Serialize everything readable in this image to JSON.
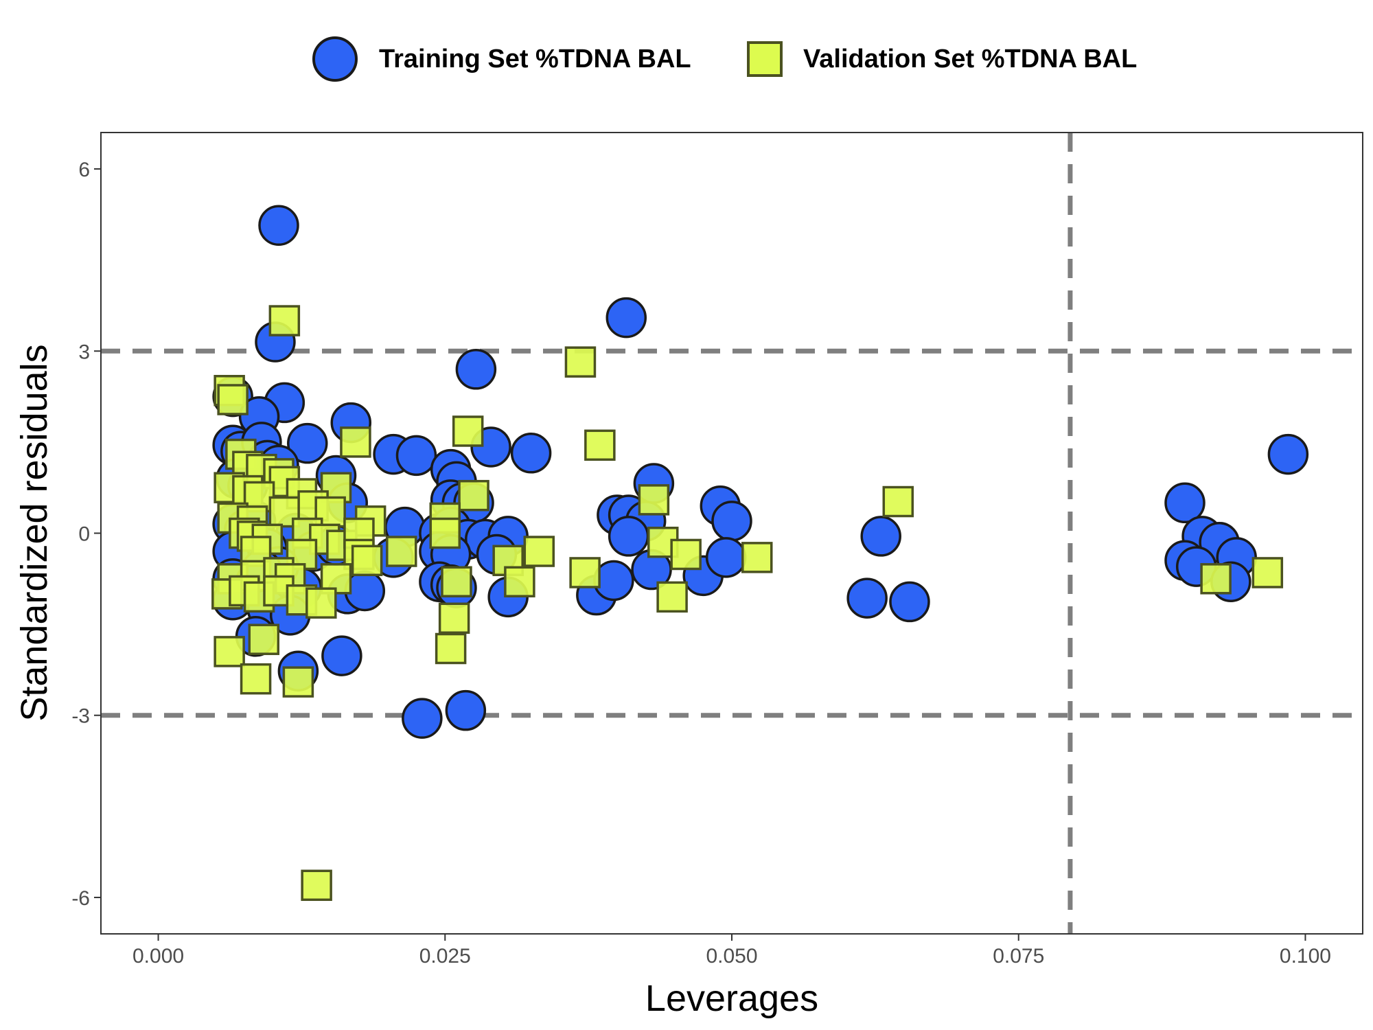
{
  "chart_data": {
    "type": "scatter",
    "xlabel": "Leverages",
    "ylabel": "Standardized residuals",
    "xlim": [
      -0.005,
      0.105
    ],
    "ylim": [
      -6.6,
      6.6
    ],
    "x_ticks": [
      0.0,
      0.025,
      0.05,
      0.075,
      0.1
    ],
    "x_tick_labels": [
      "0.000",
      "0.025",
      "0.050",
      "0.075",
      "0.100"
    ],
    "y_ticks": [
      6,
      3,
      0,
      -3,
      -6
    ],
    "y_tick_labels": [
      "6",
      "3",
      "0",
      "-3",
      "-6"
    ],
    "grid": false,
    "legend_position": "top",
    "reference_lines": {
      "horizontal": [
        3,
        -3
      ],
      "vertical": [
        0.0795
      ],
      "style": "dashed",
      "color": "#7f7f7f"
    },
    "series": [
      {
        "name": "Training Set %TDNA BAL",
        "marker": "circle",
        "fill": "#2d64f5",
        "stroke": "#1a1a1a",
        "points": [
          [
            0.0105,
            5.07
          ],
          [
            0.0102,
            3.15
          ],
          [
            0.0408,
            3.55
          ],
          [
            0.0277,
            2.7
          ],
          [
            0.0065,
            2.25
          ],
          [
            0.011,
            2.15
          ],
          [
            0.0088,
            1.92
          ],
          [
            0.0168,
            1.82
          ],
          [
            0.0065,
            1.45
          ],
          [
            0.0072,
            1.35
          ],
          [
            0.009,
            1.5
          ],
          [
            0.013,
            1.48
          ],
          [
            0.0205,
            1.3
          ],
          [
            0.0225,
            1.28
          ],
          [
            0.029,
            1.42
          ],
          [
            0.0325,
            1.32
          ],
          [
            0.0985,
            1.3
          ],
          [
            0.0095,
            1.2
          ],
          [
            0.0105,
            1.12
          ],
          [
            0.0155,
            0.95
          ],
          [
            0.0255,
            1.05
          ],
          [
            0.026,
            0.85
          ],
          [
            0.0432,
            0.82
          ],
          [
            0.0068,
            0.9
          ],
          [
            0.0078,
            0.78
          ],
          [
            0.0165,
            0.5
          ],
          [
            0.0255,
            0.55
          ],
          [
            0.0265,
            0.5
          ],
          [
            0.0275,
            0.5
          ],
          [
            0.0895,
            0.5
          ],
          [
            0.049,
            0.45
          ],
          [
            0.04,
            0.3
          ],
          [
            0.041,
            0.3
          ],
          [
            0.0425,
            0.2
          ],
          [
            0.05,
            0.2
          ],
          [
            0.0065,
            0.15
          ],
          [
            0.0075,
            0.05
          ],
          [
            0.0085,
            0.2
          ],
          [
            0.012,
            0.0
          ],
          [
            0.0215,
            0.1
          ],
          [
            0.0245,
            0.0
          ],
          [
            0.0255,
            0.1
          ],
          [
            0.027,
            -0.1
          ],
          [
            0.0285,
            -0.1
          ],
          [
            0.0305,
            -0.05
          ],
          [
            0.041,
            -0.05
          ],
          [
            0.063,
            -0.05
          ],
          [
            0.091,
            -0.05
          ],
          [
            0.0925,
            -0.15
          ],
          [
            0.0065,
            -0.3
          ],
          [
            0.0095,
            -0.25
          ],
          [
            0.0135,
            -0.3
          ],
          [
            0.0155,
            -0.2
          ],
          [
            0.0205,
            -0.4
          ],
          [
            0.0245,
            -0.3
          ],
          [
            0.0255,
            -0.35
          ],
          [
            0.0295,
            -0.35
          ],
          [
            0.043,
            -0.6
          ],
          [
            0.0475,
            -0.7
          ],
          [
            0.0495,
            -0.4
          ],
          [
            0.0895,
            -0.45
          ],
          [
            0.0905,
            -0.55
          ],
          [
            0.094,
            -0.4
          ],
          [
            0.0065,
            -0.75
          ],
          [
            0.0085,
            -0.8
          ],
          [
            0.0105,
            -0.8
          ],
          [
            0.0125,
            -0.9
          ],
          [
            0.0165,
            -1.0
          ],
          [
            0.018,
            -0.95
          ],
          [
            0.0245,
            -0.8
          ],
          [
            0.0255,
            -0.85
          ],
          [
            0.026,
            -0.9
          ],
          [
            0.0305,
            -1.05
          ],
          [
            0.0382,
            -1.02
          ],
          [
            0.0397,
            -0.78
          ],
          [
            0.0935,
            -0.8
          ],
          [
            0.0065,
            -1.1
          ],
          [
            0.0095,
            -1.25
          ],
          [
            0.0115,
            -1.35
          ],
          [
            0.0618,
            -1.07
          ],
          [
            0.0655,
            -1.13
          ],
          [
            0.0085,
            -1.7
          ],
          [
            0.016,
            -2.02
          ],
          [
            0.0122,
            -2.27
          ],
          [
            0.023,
            -3.05
          ],
          [
            0.0268,
            -2.92
          ],
          [
            0.0105,
            -0.55
          ],
          [
            0.009,
            -0.6
          ]
        ]
      },
      {
        "name": "Validation Set %TDNA BAL",
        "marker": "square",
        "fill": "#ddfb4f",
        "stroke": "#4b5220",
        "points": [
          [
            0.011,
            3.5
          ],
          [
            0.0062,
            2.35
          ],
          [
            0.0065,
            2.2
          ],
          [
            0.0368,
            2.82
          ],
          [
            0.0172,
            1.5
          ],
          [
            0.027,
            1.68
          ],
          [
            0.0385,
            1.45
          ],
          [
            0.0072,
            1.3
          ],
          [
            0.0078,
            1.1
          ],
          [
            0.009,
            1.05
          ],
          [
            0.0105,
            0.98
          ],
          [
            0.011,
            0.85
          ],
          [
            0.0062,
            0.75
          ],
          [
            0.0078,
            0.7
          ],
          [
            0.0088,
            0.6
          ],
          [
            0.0125,
            0.65
          ],
          [
            0.0155,
            0.75
          ],
          [
            0.0432,
            0.55
          ],
          [
            0.0645,
            0.52
          ],
          [
            0.0275,
            0.62
          ],
          [
            0.0065,
            0.25
          ],
          [
            0.0082,
            0.2
          ],
          [
            0.011,
            0.35
          ],
          [
            0.0135,
            0.45
          ],
          [
            0.015,
            0.35
          ],
          [
            0.0185,
            0.2
          ],
          [
            0.025,
            0.25
          ],
          [
            0.0075,
            0.0
          ],
          [
            0.0082,
            -0.05
          ],
          [
            0.0095,
            -0.1
          ],
          [
            0.013,
            0.0
          ],
          [
            0.0145,
            -0.1
          ],
          [
            0.016,
            -0.2
          ],
          [
            0.0175,
            0.0
          ],
          [
            0.025,
            0.0
          ],
          [
            0.0085,
            -0.3
          ],
          [
            0.0125,
            -0.35
          ],
          [
            0.0175,
            -0.35
          ],
          [
            0.0212,
            -0.3
          ],
          [
            0.0305,
            -0.45
          ],
          [
            0.0332,
            -0.3
          ],
          [
            0.044,
            -0.15
          ],
          [
            0.046,
            -0.35
          ],
          [
            0.0522,
            -0.4
          ],
          [
            0.0065,
            -0.75
          ],
          [
            0.0085,
            -0.7
          ],
          [
            0.0105,
            -0.65
          ],
          [
            0.0115,
            -0.75
          ],
          [
            0.0155,
            -0.75
          ],
          [
            0.0182,
            -0.45
          ],
          [
            0.026,
            -0.8
          ],
          [
            0.0315,
            -0.8
          ],
          [
            0.0372,
            -0.65
          ],
          [
            0.0922,
            -0.75
          ],
          [
            0.0967,
            -0.65
          ],
          [
            0.006,
            -1.0
          ],
          [
            0.0075,
            -0.95
          ],
          [
            0.0088,
            -1.05
          ],
          [
            0.0105,
            -0.95
          ],
          [
            0.0125,
            -1.1
          ],
          [
            0.0142,
            -1.15
          ],
          [
            0.0448,
            -1.05
          ],
          [
            0.0258,
            -1.4
          ],
          [
            0.0255,
            -1.9
          ],
          [
            0.0062,
            -1.95
          ],
          [
            0.0092,
            -1.75
          ],
          [
            0.0085,
            -2.4
          ],
          [
            0.0122,
            -2.45
          ],
          [
            0.0138,
            -5.8
          ]
        ]
      }
    ]
  }
}
